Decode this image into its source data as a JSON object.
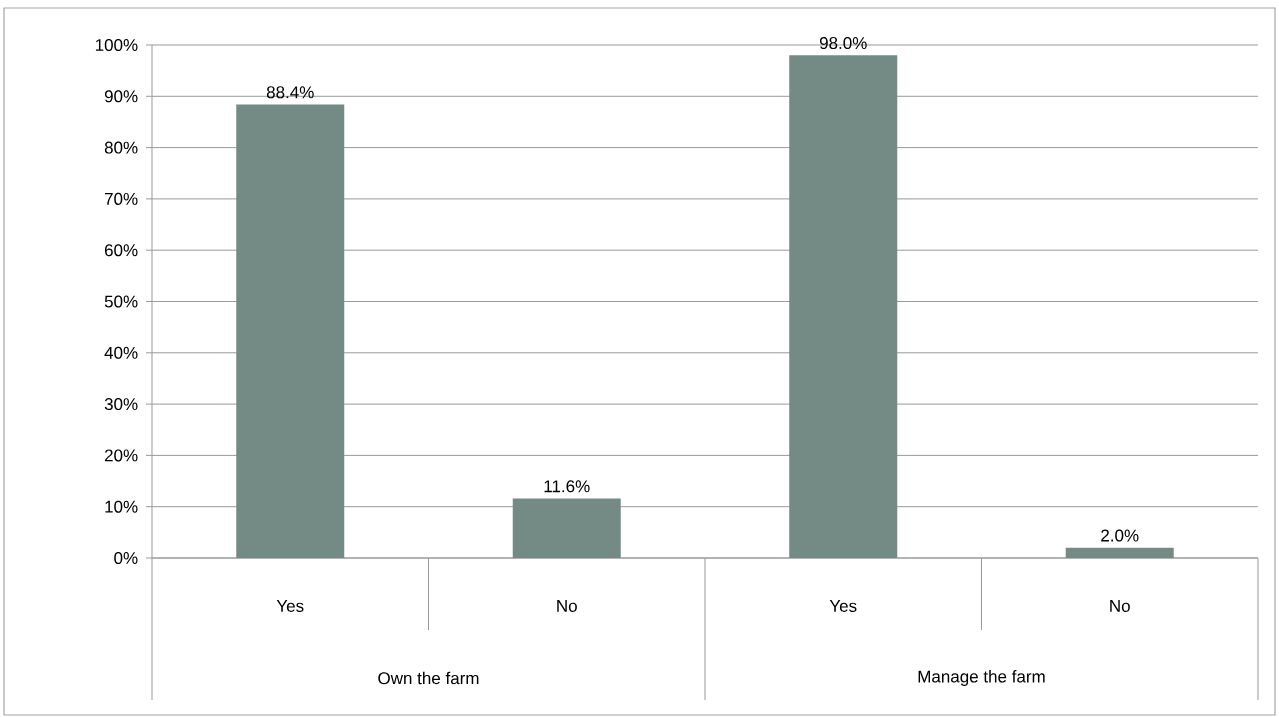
{
  "chart_data": {
    "type": "bar",
    "categories": [
      "Yes",
      "No",
      "Yes",
      "No"
    ],
    "values": [
      88.4,
      11.6,
      98.0,
      2.0
    ],
    "value_labels": [
      "88.4%",
      "11.6%",
      "98.0%",
      "2.0%"
    ],
    "color": "#748a84",
    "ylim": [
      0,
      100
    ],
    "yticks": [
      {
        "value": 0,
        "label": "0%"
      },
      {
        "value": 10,
        "label": "10%"
      },
      {
        "value": 20,
        "label": "20%"
      },
      {
        "value": 30,
        "label": "30%"
      },
      {
        "value": 40,
        "label": "40%"
      },
      {
        "value": 50,
        "label": "50%"
      },
      {
        "value": 60,
        "label": "60%"
      },
      {
        "value": 70,
        "label": "70%"
      },
      {
        "value": 80,
        "label": "80%"
      },
      {
        "value": 90,
        "label": "90%"
      },
      {
        "value": 100,
        "label": "100%"
      }
    ],
    "grid": "y",
    "annotations": [
      "Own the farm",
      "Manage the farm"
    ]
  }
}
